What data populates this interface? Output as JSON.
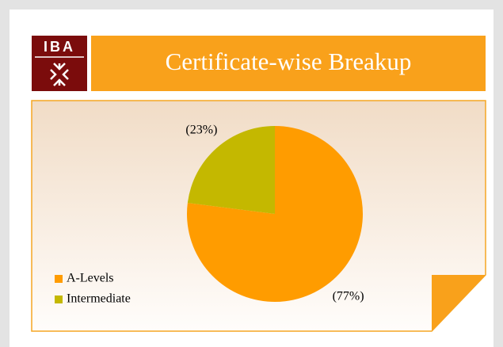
{
  "logo_text": "IBA",
  "chart_data": {
    "type": "pie",
    "title": "Certificate-wise Breakup",
    "categories": [
      "A-Levels",
      "Intermediate"
    ],
    "values": [
      77,
      23
    ],
    "value_labels": [
      "(77%)",
      "(23%)"
    ],
    "colors": [
      "#ff9c00",
      "#c4b800"
    ],
    "legend": "bottom-left"
  }
}
